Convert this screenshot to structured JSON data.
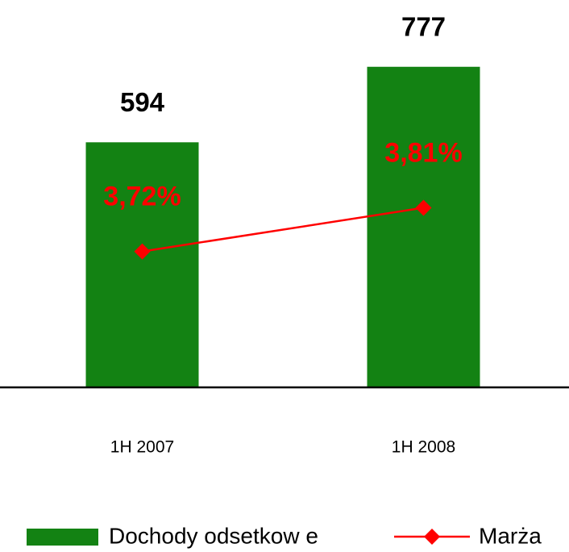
{
  "chart_data": {
    "type": "bar",
    "categories": [
      "1H 2007",
      "1H 2008"
    ],
    "ylim": [
      0,
      800
    ],
    "y2lim": [
      3.44,
      4.12
    ],
    "series": [
      {
        "name": "Dochody odsetkow e",
        "type": "bar",
        "color": "#138213",
        "values": [
          594,
          777
        ]
      },
      {
        "name": "Marża",
        "type": "line",
        "axis": "y2",
        "color": "#ff0000",
        "values": [
          3.72,
          3.81
        ],
        "value_labels": [
          "3,72%",
          "3,81%"
        ]
      }
    ],
    "grid": false
  }
}
